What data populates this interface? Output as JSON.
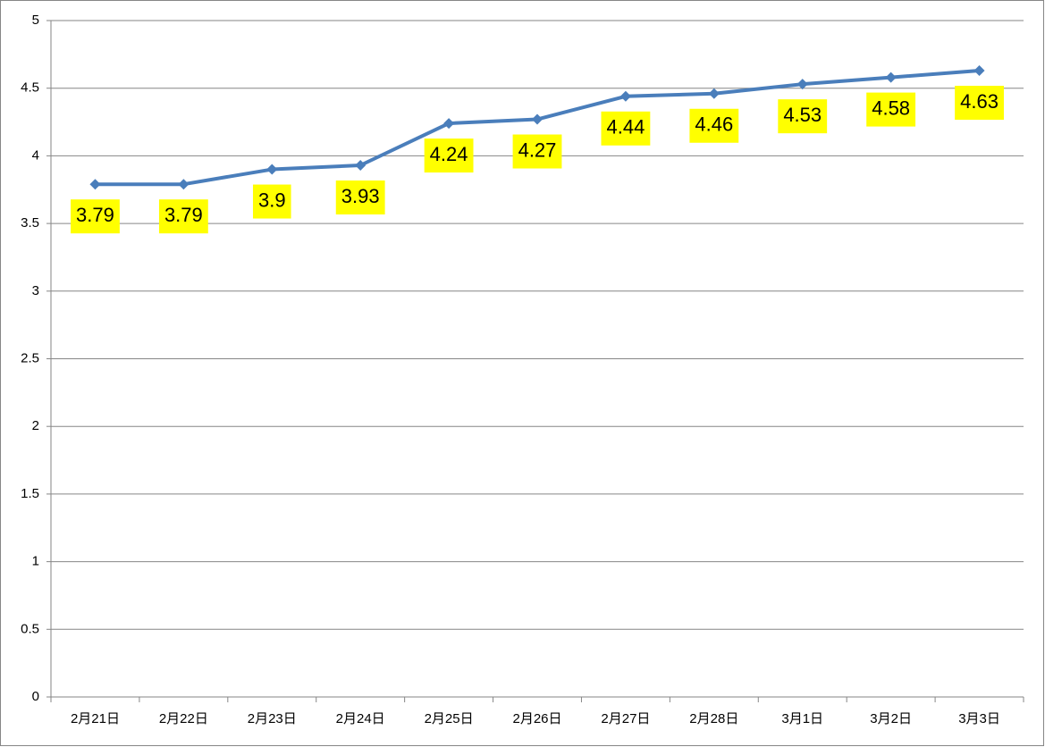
{
  "chart_data": {
    "type": "line",
    "categories": [
      "2月21日",
      "2月22日",
      "2月23日",
      "2月24日",
      "2月25日",
      "2月26日",
      "2月27日",
      "2月28日",
      "3月1日",
      "3月2日",
      "3月3日"
    ],
    "values": [
      3.79,
      3.79,
      3.9,
      3.93,
      4.24,
      4.27,
      4.44,
      4.46,
      4.53,
      4.58,
      4.63
    ],
    "color": "#4a7ebb",
    "label_color": "#ffff00",
    "ylim": [
      0,
      5
    ],
    "yticks": [
      0,
      0.5,
      1,
      1.5,
      2,
      2.5,
      3,
      3.5,
      4,
      4.5,
      5
    ],
    "grid": true
  }
}
